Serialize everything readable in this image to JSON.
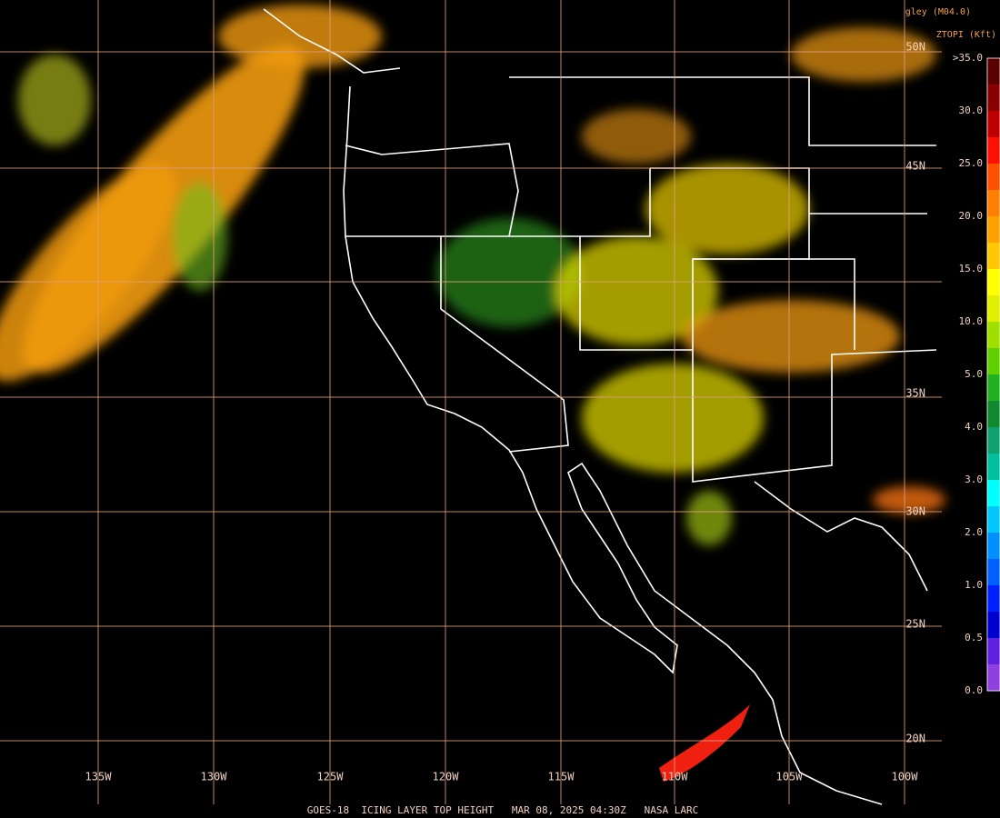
{
  "map": {
    "top_labels": [
      "gley (M04.0)",
      "ZTOPI (Kft)"
    ],
    "lon_labels": [
      "135W",
      "130W",
      "125W",
      "120W",
      "115W",
      "110W",
      "105W",
      "100W"
    ],
    "lat_labels": [
      "50N",
      "45N",
      "35N",
      "30N",
      "25N",
      "20N"
    ],
    "colorbar_labels": [
      ">35.0",
      "30.0",
      "25.0",
      "20.0",
      "15.0",
      "10.0",
      "5.0",
      "4.0",
      "3.0",
      "2.0",
      "1.0",
      "0.5",
      "0.0"
    ],
    "footer": "GOES-18  ICING LAYER TOP HEIGHT   MAR 08, 2025 04:30Z   NASA LARC"
  }
}
